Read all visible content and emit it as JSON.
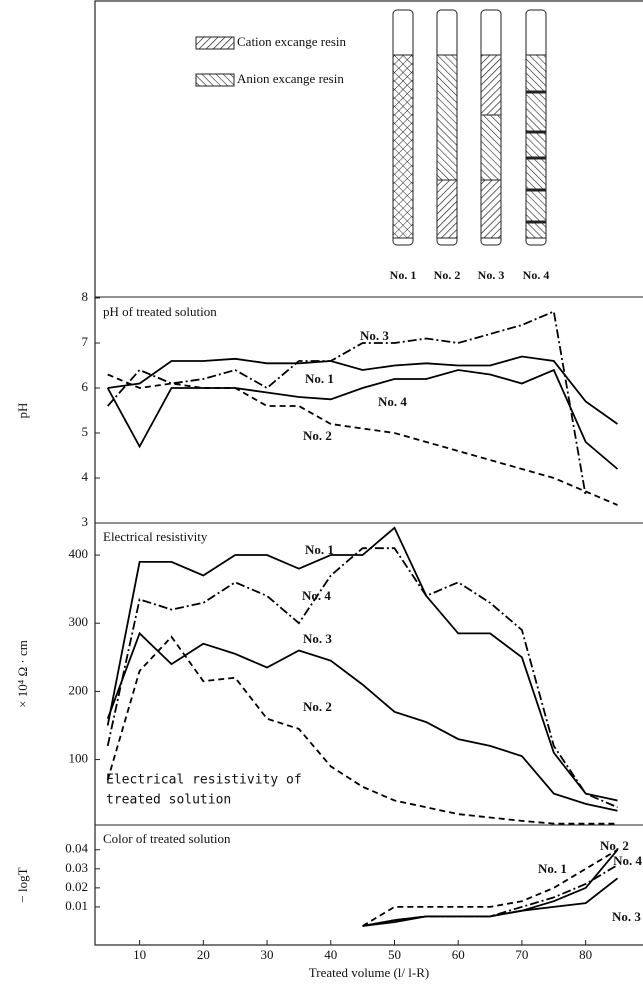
{
  "diagram": {
    "legend": [
      "Cation excange resin",
      "Anion excange resin"
    ],
    "columns": [
      "No. 1",
      "No. 2",
      "No. 3",
      "No. 4"
    ]
  },
  "chart_data": [
    {
      "type": "line",
      "title": "pH of treated solution",
      "y_label": "pH",
      "xlim": [
        3,
        89
      ],
      "ylim": [
        3,
        8
      ],
      "yticks": [
        3,
        4,
        5,
        6,
        7,
        8
      ],
      "x": [
        5,
        10,
        15,
        20,
        25,
        30,
        35,
        40,
        45,
        50,
        55,
        60,
        65,
        70,
        75,
        80,
        85
      ],
      "series": [
        {
          "name": "No. 1",
          "color": "#000000",
          "line_style": "solid",
          "values": [
            6.0,
            6.1,
            6.6,
            6.6,
            6.65,
            6.55,
            6.55,
            6.6,
            6.4,
            6.5,
            6.55,
            6.5,
            6.5,
            6.7,
            6.6,
            5.7,
            5.2
          ]
        },
        {
          "name": "No. 2",
          "color": "#000000",
          "line_style": "dashed",
          "values": [
            6.3,
            6.0,
            6.1,
            6.0,
            6.0,
            5.6,
            5.6,
            5.2,
            5.1,
            5.0,
            4.8,
            4.6,
            4.4,
            4.2,
            4.0,
            3.7,
            3.4
          ]
        },
        {
          "name": "No. 3",
          "color": "#000000",
          "line_style": "dash-dot",
          "values": [
            5.6,
            6.4,
            6.1,
            6.2,
            6.4,
            6.0,
            6.6,
            6.6,
            7.0,
            7.0,
            7.1,
            7.0,
            7.2,
            7.4,
            7.7,
            3.6,
            null
          ]
        },
        {
          "name": "No. 4",
          "color": "#000000",
          "line_style": "solid",
          "values": [
            6.0,
            4.7,
            6.0,
            6.0,
            6.0,
            5.9,
            5.8,
            5.75,
            6.0,
            6.2,
            6.2,
            6.4,
            6.3,
            6.1,
            6.4,
            4.8,
            4.2
          ]
        }
      ]
    },
    {
      "type": "line",
      "title": "Electrical resistivity",
      "y_label": "× 10⁴ Ω · cm",
      "annotation": [
        "Electrical resistivity of",
        "treated solution"
      ],
      "xlim": [
        3,
        89
      ],
      "ylim": [
        4,
        447
      ],
      "yticks": [
        100,
        200,
        300,
        400
      ],
      "x": [
        5,
        10,
        15,
        20,
        25,
        30,
        35,
        40,
        45,
        50,
        55,
        60,
        65,
        70,
        75,
        80,
        85
      ],
      "series": [
        {
          "name": "No. 1",
          "color": "#000000",
          "line_style": "solid",
          "values": [
            150,
            390,
            390,
            370,
            400,
            400,
            380,
            400,
            400,
            440,
            340,
            285,
            285,
            250,
            110,
            50,
            40
          ]
        },
        {
          "name": "No. 2",
          "color": "#000000",
          "line_style": "dashed",
          "values": [
            70,
            230,
            280,
            215,
            220,
            160,
            145,
            90,
            60,
            40,
            30,
            20,
            15,
            10,
            6,
            6,
            6
          ]
        },
        {
          "name": "No. 3",
          "color": "#000000",
          "line_style": "solid",
          "values": [
            160,
            285,
            240,
            270,
            255,
            235,
            260,
            245,
            210,
            170,
            155,
            130,
            120,
            105,
            50,
            35,
            25
          ]
        },
        {
          "name": "No. 4",
          "color": "#000000",
          "line_style": "dash-dot",
          "values": [
            120,
            335,
            320,
            330,
            360,
            340,
            300,
            370,
            410,
            410,
            340,
            360,
            330,
            290,
            120,
            50,
            30
          ]
        }
      ]
    },
    {
      "type": "line",
      "title": "Color of treated solution",
      "y_label": "− logT",
      "x_label": "Treated volume (l/ l-R)",
      "xlim": [
        3,
        89
      ],
      "ylim": [
        -0.01,
        0.053
      ],
      "yticks": [
        0.01,
        0.02,
        0.03,
        0.04
      ],
      "xticks": [
        10,
        20,
        30,
        40,
        50,
        60,
        70,
        80
      ],
      "x": [
        45,
        50,
        55,
        60,
        65,
        70,
        75,
        80,
        85
      ],
      "series": [
        {
          "name": "No. 1",
          "color": "#000000",
          "line_style": "solid",
          "values": [
            0,
            0.003,
            0.005,
            0.005,
            0.005,
            0.008,
            0.013,
            0.02,
            0.04
          ]
        },
        {
          "name": "No. 2",
          "color": "#000000",
          "line_style": "dashed",
          "values": [
            0,
            0.01,
            0.01,
            0.01,
            0.01,
            0.013,
            0.02,
            0.03,
            0.04
          ]
        },
        {
          "name": "No. 3",
          "color": "#000000",
          "line_style": "solid",
          "values": [
            0,
            0.002,
            0.005,
            0.005,
            0.005,
            0.008,
            0.01,
            0.012,
            0.025
          ]
        },
        {
          "name": "No. 4",
          "color": "#000000",
          "line_style": "dash-dot",
          "values": [
            0,
            0.003,
            0.005,
            0.005,
            0.005,
            0.01,
            0.015,
            0.022,
            0.032
          ]
        }
      ]
    }
  ]
}
